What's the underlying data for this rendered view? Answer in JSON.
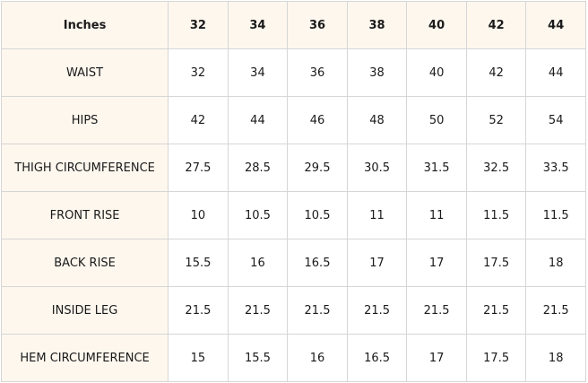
{
  "table": {
    "header": {
      "corner": "Inches",
      "sizes": [
        "32",
        "34",
        "36",
        "38",
        "40",
        "42",
        "44"
      ]
    },
    "rows": [
      {
        "label": "WAIST",
        "values": [
          "32",
          "34",
          "36",
          "38",
          "40",
          "42",
          "44"
        ]
      },
      {
        "label": "HIPS",
        "values": [
          "42",
          "44",
          "46",
          "48",
          "50",
          "52",
          "54"
        ]
      },
      {
        "label": "THIGH CIRCUMFERENCE",
        "values": [
          "27.5",
          "28.5",
          "29.5",
          "30.5",
          "31.5",
          "32.5",
          "33.5"
        ]
      },
      {
        "label": "FRONT RISE",
        "values": [
          "10",
          "10.5",
          "10.5",
          "11",
          "11",
          "11.5",
          "11.5"
        ]
      },
      {
        "label": "BACK RISE",
        "values": [
          "15.5",
          "16",
          "16.5",
          "17",
          "17",
          "17.5",
          "18"
        ]
      },
      {
        "label": "INSIDE LEG",
        "values": [
          "21.5",
          "21.5",
          "21.5",
          "21.5",
          "21.5",
          "21.5",
          "21.5"
        ]
      },
      {
        "label": "HEM CIRCUMFERENCE",
        "values": [
          "15",
          "15.5",
          "16",
          "16.5",
          "17",
          "17.5",
          "18"
        ]
      }
    ]
  },
  "colors": {
    "header_bg": "#fdf7ee",
    "border": "#d6d6d6",
    "text": "#1a1a1a"
  }
}
